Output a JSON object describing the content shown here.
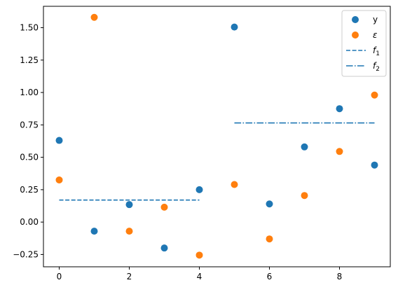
{
  "chart_data": {
    "type": "scatter",
    "title": "",
    "xlabel": "",
    "ylabel": "",
    "xlim": [
      -0.45,
      9.45
    ],
    "ylim": [
      -0.345,
      1.665
    ],
    "xticks": [
      0,
      2,
      4,
      6,
      8
    ],
    "xtick_labels": [
      "0",
      "2",
      "4",
      "6",
      "8"
    ],
    "yticks": [
      -0.25,
      0.0,
      0.25,
      0.5,
      0.75,
      1.0,
      1.25,
      1.5
    ],
    "ytick_labels": [
      "−0.25",
      "0.00",
      "0.25",
      "0.50",
      "0.75",
      "1.00",
      "1.25",
      "1.50"
    ],
    "grid": false,
    "legend_position": "top-right",
    "series": [
      {
        "name": "y",
        "kind": "scatter",
        "color": "#1f77b4",
        "x": [
          0,
          1,
          2,
          3,
          4,
          5,
          6,
          7,
          8,
          9
        ],
        "y": [
          0.63,
          -0.07,
          0.135,
          -0.2,
          0.25,
          1.505,
          0.14,
          0.58,
          0.875,
          0.44
        ]
      },
      {
        "name": "ε",
        "kind": "scatter",
        "color": "#ff7f0e",
        "x": [
          0,
          1,
          2,
          3,
          4,
          5,
          6,
          7,
          8,
          9
        ],
        "y": [
          0.325,
          1.58,
          -0.07,
          0.115,
          -0.255,
          0.29,
          -0.13,
          0.205,
          0.545,
          0.98
        ]
      },
      {
        "name": "f",
        "name_subscript": "1",
        "kind": "line",
        "style": "dashed",
        "color": "#1f77b4",
        "x": [
          0,
          4
        ],
        "y": [
          0.17,
          0.17
        ]
      },
      {
        "name": "f",
        "name_subscript": "2",
        "kind": "line",
        "style": "dashdot",
        "color": "#1f77b4",
        "x": [
          5,
          9
        ],
        "y": [
          0.765,
          0.765
        ]
      }
    ]
  }
}
